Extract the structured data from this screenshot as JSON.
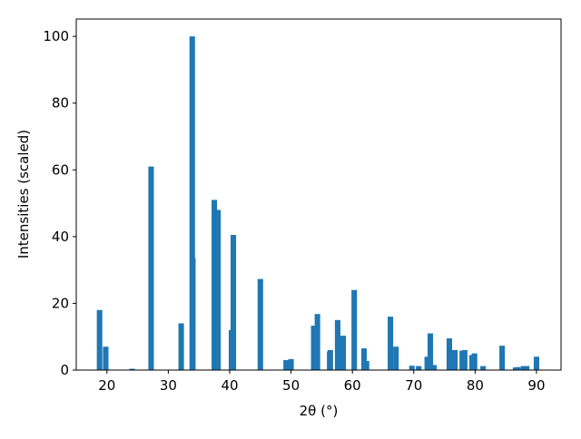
{
  "chart_data": {
    "type": "bar",
    "xlabel": "2θ (°)",
    "ylabel": "Intensities (scaled)",
    "x": [
      18.8,
      19.8,
      24.1,
      27.2,
      32.1,
      33.9,
      34.0,
      37.5,
      38.1,
      40.3,
      40.6,
      45.0,
      49.2,
      50.0,
      53.7,
      54.3,
      56.3,
      56.4,
      57.6,
      58.5,
      60.3,
      61.9,
      62.3,
      66.2,
      67.1,
      69.7,
      70.8,
      72.2,
      72.7,
      73.3,
      75.8,
      76.7,
      77.9,
      78.3,
      79.5,
      79.9,
      81.3,
      84.4,
      86.6,
      87.0,
      87.9,
      88.4,
      90.0
    ],
    "values": [
      18,
      7,
      0.4,
      61,
      14,
      100,
      33.5,
      51,
      48,
      12,
      40.5,
      27.3,
      3,
      3.3,
      13.3,
      16.8,
      5.5,
      6,
      15,
      10.3,
      24,
      6.5,
      2.7,
      16,
      7,
      1.3,
      1.2,
      4,
      11,
      1.5,
      9.5,
      6,
      5.8,
      6,
      4.5,
      5,
      1.2,
      7.3,
      0.8,
      0.9,
      1.2,
      1.2,
      4
    ],
    "color": "#1f77b4",
    "xlim": [
      15,
      94
    ],
    "ylim": [
      0,
      105.2
    ],
    "xticks": [
      20,
      30,
      40,
      50,
      60,
      70,
      80,
      90
    ],
    "yticks": [
      0,
      20,
      40,
      60,
      80,
      100
    ]
  }
}
